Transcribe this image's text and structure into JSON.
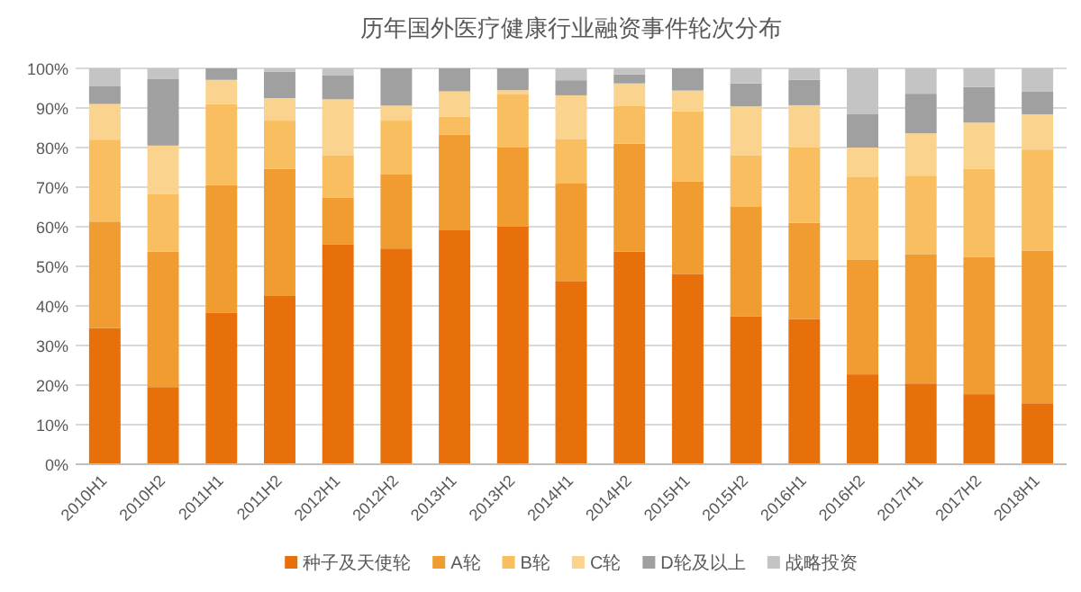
{
  "chart_data": {
    "type": "bar",
    "stacked": true,
    "title": "历年国外医疗健康行业融资事件轮次分布",
    "categories": [
      "2010H1",
      "2010H2",
      "2011H1",
      "2011H2",
      "2012H1",
      "2012H2",
      "2013H1",
      "2013H2",
      "2014H1",
      "2014H2",
      "2015H1",
      "2015H2",
      "2016H1",
      "2016H2",
      "2017H1",
      "2017H2",
      "2018H1"
    ],
    "series": [
      {
        "name": "种子及天使轮",
        "color": "#e8700a",
        "values": [
          34.4,
          19.5,
          38.2,
          42.5,
          55.6,
          54.5,
          59.1,
          60,
          46.3,
          53.7,
          48.1,
          37.4,
          36.7,
          22.7,
          20.4,
          17.7,
          15.4
        ]
      },
      {
        "name": "A轮",
        "color": "#f09c30",
        "values": [
          26.9,
          34.2,
          32.3,
          32.1,
          11.8,
          18.7,
          24.2,
          20,
          24.6,
          27.3,
          23.3,
          27.6,
          24.3,
          28.9,
          32.7,
          34.7,
          38.6
        ]
      },
      {
        "name": "B轮",
        "color": "#f8be60",
        "values": [
          20.7,
          14.5,
          20.5,
          12.2,
          10.7,
          13.6,
          4.5,
          13.4,
          11.3,
          9.6,
          17.8,
          13.1,
          19,
          20.9,
          19.8,
          22.2,
          25.5
        ]
      },
      {
        "name": "C轮",
        "color": "#fad48e",
        "values": [
          9,
          12.3,
          6.1,
          5.7,
          14.1,
          3.8,
          6.4,
          1.1,
          11,
          5.6,
          5.2,
          12.3,
          10.7,
          7.5,
          10.7,
          11.7,
          8.9
        ]
      },
      {
        "name": "D轮及以上",
        "color": "#a0a0a0",
        "values": [
          4.6,
          16.9,
          2.9,
          6.7,
          6.1,
          9.4,
          5.8,
          5.5,
          3.8,
          2.3,
          5.6,
          5.8,
          6.4,
          8.4,
          10,
          9,
          5.7
        ]
      },
      {
        "name": "战略投资",
        "color": "#c4c4c4",
        "values": [
          4.4,
          2.6,
          0,
          0.8,
          1.7,
          0,
          0,
          0,
          3,
          1.5,
          0,
          3.8,
          2.9,
          11.6,
          6.4,
          4.7,
          5.9
        ]
      }
    ],
    "ylim": [
      0,
      100
    ],
    "yticks": [
      {
        "value": 0,
        "label": "0%"
      },
      {
        "value": 10,
        "label": "10%"
      },
      {
        "value": 20,
        "label": "20%"
      },
      {
        "value": 30,
        "label": "30%"
      },
      {
        "value": 40,
        "label": "40%"
      },
      {
        "value": 50,
        "label": "50%"
      },
      {
        "value": 60,
        "label": "60%"
      },
      {
        "value": 70,
        "label": "70%"
      },
      {
        "value": 80,
        "label": "80%"
      },
      {
        "value": 90,
        "label": "90%"
      },
      {
        "value": 100,
        "label": "100%"
      }
    ],
    "grid": "y",
    "legend": "bottom"
  }
}
